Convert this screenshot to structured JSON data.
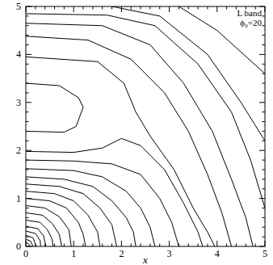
{
  "chart_data": {
    "type": "contour",
    "x_label": "x",
    "annotations": [
      "L band",
      "ϕ₀=20"
    ],
    "color": "#000000",
    "xlim": [
      0,
      5
    ],
    "ylim": [
      0,
      5
    ],
    "xticks": [
      0,
      1,
      2,
      3,
      4,
      5
    ],
    "yticks": [
      0,
      1,
      2,
      3,
      4,
      5
    ],
    "series": [
      {
        "x": [
          0,
          0.06,
          0.08
        ],
        "values": [
          0.08,
          0.05,
          0
        ]
      },
      {
        "x": [
          0,
          0.1,
          0.15
        ],
        "values": [
          0.15,
          0.11,
          0
        ]
      },
      {
        "x": [
          0,
          0.15,
          0.22
        ],
        "values": [
          0.23,
          0.18,
          0
        ]
      },
      {
        "x": [
          0,
          0.2,
          0.3,
          0.31
        ],
        "values": [
          0.32,
          0.27,
          0.12,
          0
        ]
      },
      {
        "x": [
          0,
          0.25,
          0.37,
          0.42
        ],
        "values": [
          0.42,
          0.37,
          0.22,
          0
        ]
      },
      {
        "x": [
          0,
          0.3,
          0.45,
          0.55,
          0.57
        ],
        "values": [
          0.55,
          0.5,
          0.35,
          0.15,
          0
        ]
      },
      {
        "x": [
          0,
          0.35,
          0.55,
          0.7,
          0.75
        ],
        "values": [
          0.7,
          0.65,
          0.48,
          0.25,
          0
        ]
      },
      {
        "x": [
          0,
          0.4,
          0.7,
          0.9,
          0.95
        ],
        "values": [
          0.85,
          0.8,
          0.62,
          0.35,
          0
        ]
      },
      {
        "x": [
          0,
          0.5,
          0.85,
          1.1,
          1.2,
          1.25
        ],
        "values": [
          1.0,
          0.95,
          0.8,
          0.5,
          0.25,
          0
        ]
      },
      {
        "x": [
          0,
          0.6,
          1.0,
          1.3,
          1.5,
          1.55
        ],
        "values": [
          1.15,
          1.1,
          0.95,
          0.65,
          0.3,
          0
        ]
      },
      {
        "x": [
          0,
          0.7,
          1.2,
          1.55,
          1.8,
          1.9
        ],
        "values": [
          1.3,
          1.25,
          1.1,
          0.8,
          0.45,
          0
        ]
      },
      {
        "x": [
          0,
          0.8,
          1.4,
          1.8,
          2.1,
          2.25,
          2.3
        ],
        "values": [
          1.45,
          1.4,
          1.25,
          0.95,
          0.6,
          0.3,
          0
        ]
      },
      {
        "x": [
          0,
          1,
          1.6,
          2.1,
          2.4,
          2.6,
          2.7
        ],
        "values": [
          1.62,
          1.58,
          1.45,
          1.15,
          0.8,
          0.4,
          0
        ]
      },
      {
        "x": [
          0,
          1,
          1.8,
          2.4,
          2.8,
          3.05,
          3.2
        ],
        "values": [
          1.8,
          1.78,
          1.72,
          1.5,
          1.0,
          0.5,
          0
        ]
      },
      {
        "x": [
          0,
          1,
          1.6,
          2.0,
          2.4,
          2.9,
          3.3,
          3.6,
          3.7
        ],
        "values": [
          1.98,
          1.96,
          2.05,
          2.25,
          2.1,
          1.6,
          0.9,
          0.3,
          0
        ]
      },
      {
        "x": [
          0,
          0.8,
          1.05,
          1.2,
          1.1,
          0.7,
          0
        ],
        "values": [
          2.4,
          2.38,
          2.5,
          2.9,
          3.1,
          3.35,
          3.4
        ]
      },
      {
        "x": [
          0,
          1.5,
          2.05,
          2.3,
          2.6,
          3.1,
          3.5,
          3.8,
          3.95
        ],
        "values": [
          3.95,
          3.85,
          3.4,
          2.8,
          2.3,
          1.6,
          0.8,
          0.3,
          0
        ]
      },
      {
        "x": [
          0,
          1.3,
          2.2,
          2.9,
          3.4,
          3.8,
          4.1,
          4.3
        ],
        "values": [
          4.38,
          4.3,
          3.9,
          3.2,
          2.4,
          1.5,
          0.7,
          0
        ]
      },
      {
        "x": [
          0,
          1.6,
          2.6,
          3.3,
          3.9,
          4.3,
          4.6,
          4.75
        ],
        "values": [
          4.65,
          4.6,
          4.2,
          3.4,
          2.4,
          1.4,
          0.6,
          0
        ]
      },
      {
        "x": [
          0,
          1.7,
          2.7,
          3.6,
          4.3,
          4.7,
          5
        ],
        "values": [
          4.85,
          4.82,
          4.6,
          3.8,
          2.8,
          1.8,
          0.8
        ]
      },
      {
        "x": [
          1.8,
          2.8,
          3.8,
          4.5,
          5
        ],
        "values": [
          5,
          4.8,
          4.0,
          3.0,
          2.2
        ]
      },
      {
        "x": [
          3.2,
          4.0,
          5
        ],
        "values": [
          5,
          4.5,
          3.6
        ]
      }
    ]
  }
}
